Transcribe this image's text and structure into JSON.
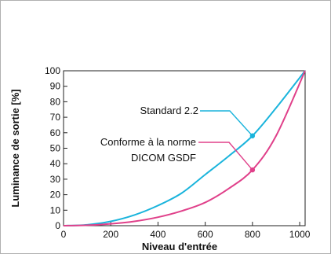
{
  "chart_data": {
    "type": "line",
    "title": "",
    "xlabel": "Niveau d'entrée",
    "ylabel": "Luminance de sortie [%]",
    "xlim": [
      0,
      1023
    ],
    "ylim": [
      0,
      100
    ],
    "x_ticks": [
      0,
      200,
      400,
      600,
      800,
      1000
    ],
    "y_ticks": [
      0,
      10,
      20,
      30,
      40,
      50,
      60,
      70,
      80,
      90,
      100
    ],
    "grid": false,
    "series": [
      {
        "name": "Standard 2.2",
        "color": "#1ab4dc",
        "x": [
          0,
          100,
          200,
          300,
          400,
          500,
          600,
          700,
          800,
          900,
          1023
        ],
        "y": [
          0,
          0.6,
          2.8,
          6.9,
          13,
          21,
          33,
          45,
          58,
          76,
          100
        ],
        "highlight": {
          "x": 800,
          "y": 58
        }
      },
      {
        "name": "Conforme à la norme DICOM GSDF",
        "color": "#e0408a",
        "x": [
          0,
          100,
          200,
          300,
          400,
          500,
          600,
          700,
          800,
          900,
          1023
        ],
        "y": [
          0,
          0.3,
          1.2,
          2.8,
          5.5,
          9.5,
          15,
          24,
          36,
          58,
          100
        ],
        "highlight": {
          "x": 800,
          "y": 36
        }
      }
    ],
    "annotations": [
      {
        "lines": [
          "Standard 2.2"
        ],
        "series": 0
      },
      {
        "lines": [
          "Conforme à la norme",
          "DICOM GSDF"
        ],
        "series": 1
      }
    ]
  }
}
